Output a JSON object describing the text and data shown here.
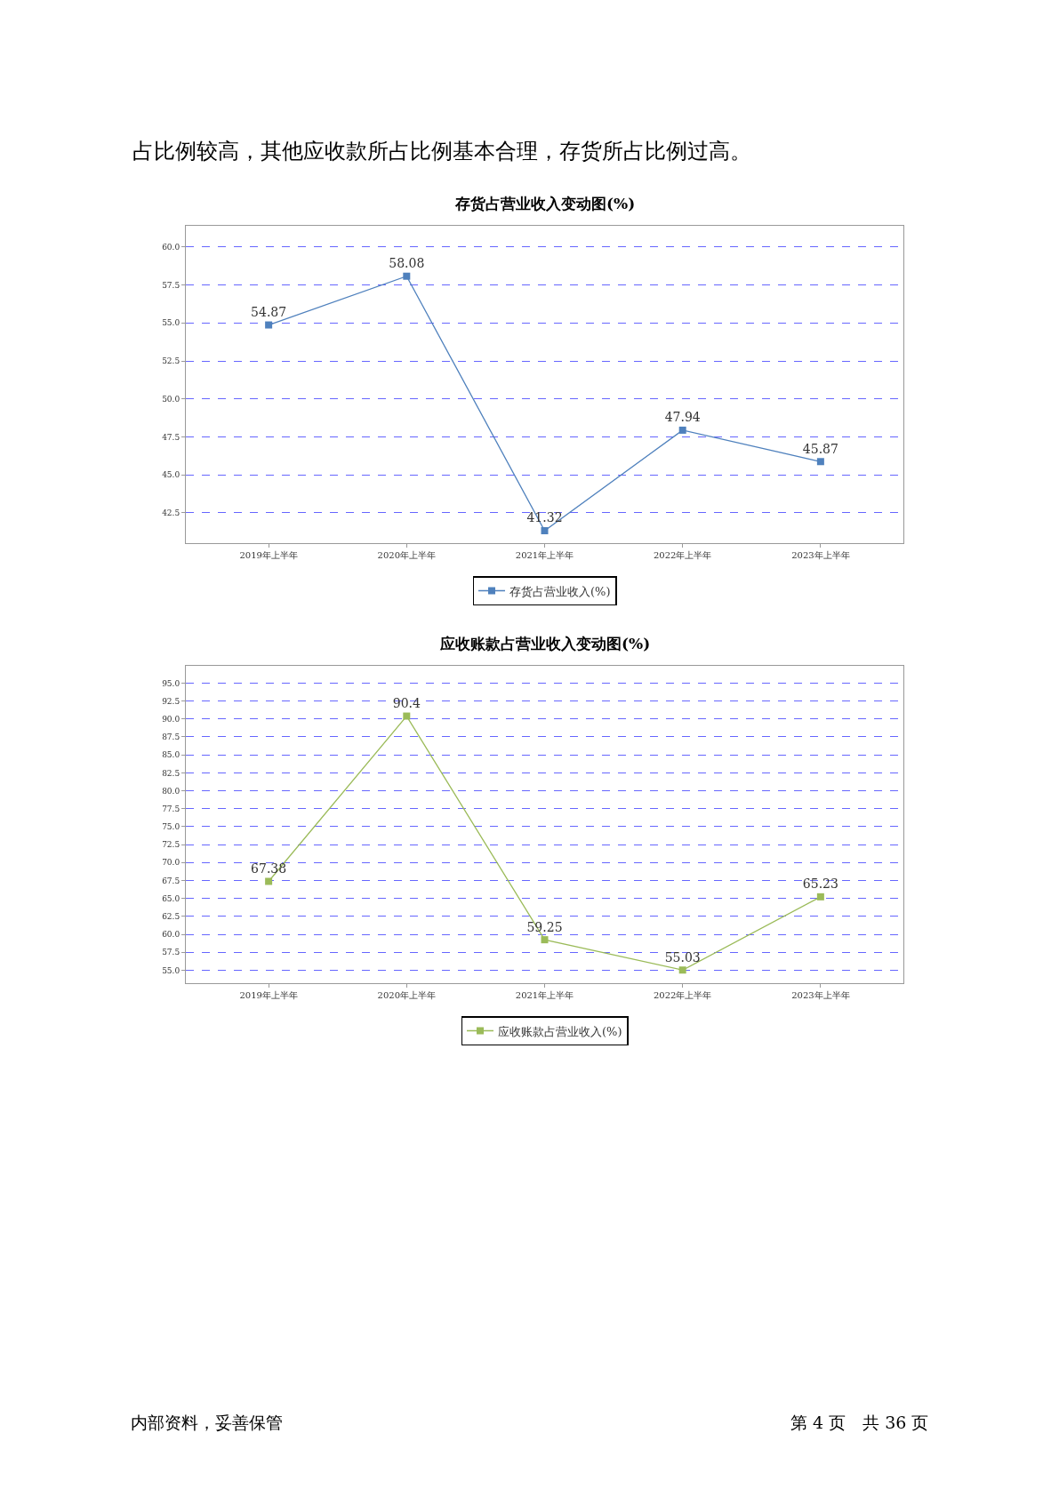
{
  "chart_data": [
    {
      "type": "line",
      "title": "存货占营业收入变动图(%)",
      "categories": [
        "2019年上半年",
        "2020年上半年",
        "2021年上半年",
        "2022年上半年",
        "2023年上半年"
      ],
      "series": [
        {
          "name": "存货占营业收入(%)",
          "color": "#4f81bd",
          "values": [
            54.87,
            58.08,
            41.32,
            47.94,
            45.87
          ]
        }
      ],
      "ylim": [
        40.5,
        61.4
      ],
      "yticks": [
        {
          "value": 42.5,
          "label": "42.5"
        },
        {
          "value": 45,
          "label": "45.0"
        },
        {
          "value": 47.5,
          "label": "47.5"
        },
        {
          "value": 50,
          "label": "50.0"
        },
        {
          "value": 52.5,
          "label": "52.5"
        },
        {
          "value": 55,
          "label": "55.0"
        },
        {
          "value": 57.5,
          "label": "57.5"
        },
        {
          "value": 60,
          "label": "60.0"
        }
      ],
      "grid": "y",
      "legend": "bottom",
      "marker": "square",
      "line_style": "solid",
      "data_labels": true,
      "annotations": [
        "占比例较高，其他应收款所占比例基本合理，存货所占比例过高。"
      ]
    },
    {
      "type": "line",
      "title": "应收账款占营业收入变动图(%)",
      "categories": [
        "2019年上半年",
        "2020年上半年",
        "2021年上半年",
        "2022年上半年",
        "2023年上半年"
      ],
      "series": [
        {
          "name": "应收账款占营业收入(%)",
          "color": "#9bbb59",
          "values": [
            67.38,
            90.4,
            59.25,
            55.03,
            65.23
          ]
        }
      ],
      "ylim": [
        53.2,
        97.4
      ],
      "yticks": [
        {
          "value": 55,
          "label": "55.0"
        },
        {
          "value": 57.5,
          "label": "57.5"
        },
        {
          "value": 60,
          "label": "60.0"
        },
        {
          "value": 62.5,
          "label": "62.5"
        },
        {
          "value": 65,
          "label": "65.0"
        },
        {
          "value": 67.5,
          "label": "67.5"
        },
        {
          "value": 70,
          "label": "70.0"
        },
        {
          "value": 72.5,
          "label": "72.5"
        },
        {
          "value": 75,
          "label": "75.0"
        },
        {
          "value": 77.5,
          "label": "77.5"
        },
        {
          "value": 80,
          "label": "80.0"
        },
        {
          "value": 82.5,
          "label": "82.5"
        },
        {
          "value": 85,
          "label": "85.0"
        },
        {
          "value": 87.5,
          "label": "87.5"
        },
        {
          "value": 90,
          "label": "90.0"
        },
        {
          "value": 92.5,
          "label": "92.5"
        },
        {
          "value": 95,
          "label": "95.0"
        }
      ],
      "grid": "y",
      "legend": "bottom",
      "marker": "square",
      "line_style": "solid",
      "data_labels": true,
      "annotations": [
        "内部资料，妥善保管",
        "第 4 页　共 36 页"
      ]
    }
  ]
}
